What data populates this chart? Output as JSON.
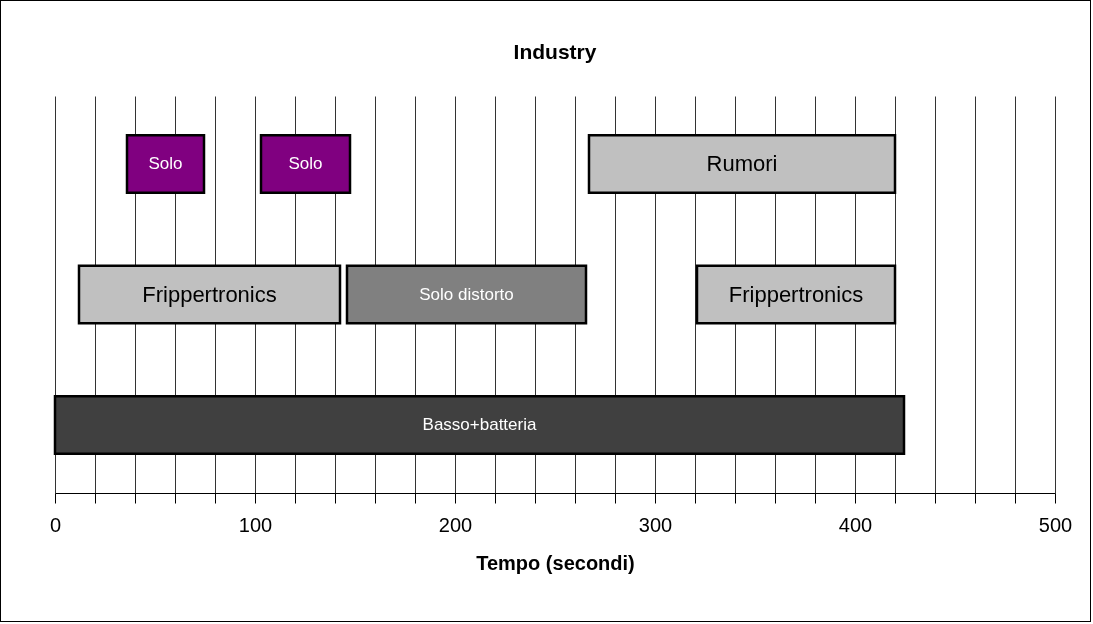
{
  "chart_data": {
    "type": "bar",
    "title": "Industry",
    "xlabel": "Tempo (secondi)",
    "orientation": "horizontal",
    "categories": [
      null,
      null,
      null
    ],
    "series": [
      {
        "values": [
          38.5,
          130.5,
          424.5
        ],
        "base": [
          36,
          12,
          0
        ],
        "colors": [
          "#800080",
          "#c0c0c0",
          "#404040"
        ],
        "value_labels": [
          "Solo",
          "Frippertronics",
          "Basso+batteria"
        ]
      },
      {
        "values": [
          44.5,
          119.5,
          null
        ],
        "base": [
          103,
          146,
          null
        ],
        "colors": [
          "#800080",
          "#808080",
          null
        ],
        "value_labels": [
          "Solo",
          "Solo distorto",
          null
        ]
      },
      {
        "values": [
          153,
          99,
          null
        ],
        "base": [
          267,
          321,
          null
        ],
        "colors": [
          "#c0c0c0",
          "#c0c0c0",
          null
        ],
        "value_labels": [
          "Rumori",
          "Frippertronics",
          null
        ]
      }
    ],
    "xlim": [
      0,
      500
    ],
    "xticks": [
      0,
      {
        "value": 20,
        "label": null
      },
      {
        "value": 40,
        "label": null
      },
      {
        "value": 60,
        "label": null
      },
      {
        "value": 80,
        "label": null
      },
      100,
      {
        "value": 120,
        "label": null
      },
      {
        "value": 140,
        "label": null
      },
      {
        "value": 160,
        "label": null
      },
      {
        "value": 180,
        "label": null
      },
      200,
      {
        "value": 220,
        "label": null
      },
      {
        "value": 240,
        "label": null
      },
      {
        "value": 260,
        "label": null
      },
      {
        "value": 280,
        "label": null
      },
      300,
      {
        "value": 320,
        "label": null
      },
      {
        "value": 340,
        "label": null
      },
      {
        "value": 360,
        "label": null
      },
      {
        "value": 380,
        "label": null
      },
      400,
      {
        "value": 420,
        "label": null
      },
      {
        "value": 440,
        "label": null
      },
      {
        "value": 460,
        "label": null
      },
      {
        "value": 480,
        "label": null
      },
      500
    ],
    "grid": "x",
    "tick_labels": "x"
  }
}
